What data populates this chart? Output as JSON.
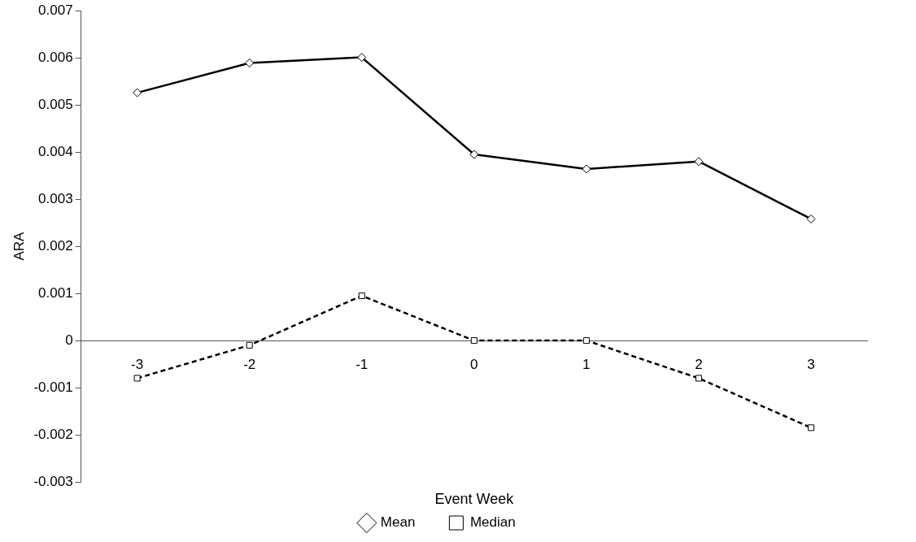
{
  "chart_data": {
    "type": "line",
    "xlabel": "Event Week",
    "ylabel": "ARA",
    "categories": [
      "-3",
      "-2",
      "-1",
      "0",
      "1",
      "2",
      "3"
    ],
    "series": [
      {
        "name": "Mean",
        "color": "#000000",
        "marker": "diamond",
        "line_style": "solid",
        "values": [
          0.00526,
          0.00589,
          0.00601,
          0.00395,
          0.00364,
          0.0038,
          0.00258
        ]
      },
      {
        "name": "Median",
        "color": "#000000",
        "marker": "square",
        "line_style": "dashed",
        "values": [
          -0.0008,
          -0.0001,
          0.00095,
          0,
          0,
          -0.0008,
          -0.00185
        ]
      }
    ],
    "ylim": [
      -0.003,
      0.007
    ],
    "yticks": [
      -0.003,
      -0.002,
      -0.001,
      0,
      0.001,
      0.002,
      0.003,
      0.004,
      0.005,
      0.006,
      0.007
    ],
    "grid": false,
    "legend": "bottom"
  }
}
